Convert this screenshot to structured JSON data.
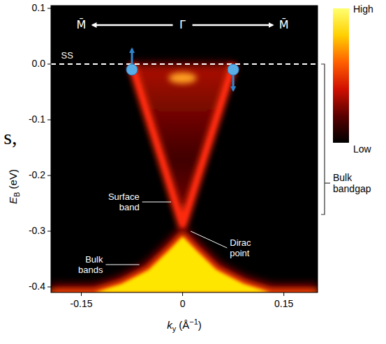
{
  "chart_data": {
    "type": "arpes",
    "x_label": [
      {
        "text": "k",
        "style": "italic"
      },
      {
        "text": "y",
        "style": "sub"
      },
      {
        "text": " (Å"
      },
      {
        "text": "−1",
        "style": "sup"
      },
      {
        "text": ")"
      }
    ],
    "y_label": [
      {
        "text": "E",
        "style": "italic"
      },
      {
        "text": "B",
        "style": "sub"
      },
      {
        "text": " (eV)"
      }
    ],
    "xlim": [
      -0.195,
      0.2
    ],
    "xticks": [
      -0.15,
      0,
      0.15
    ],
    "ylim": [
      -0.41,
      0.105
    ],
    "yticks": [
      0.1,
      {
        "value": 0,
        "label": "0.0"
      },
      -0.1,
      -0.2,
      -0.3,
      -0.4
    ],
    "series": [
      {
        "type": "line",
        "color": "#ff2a10",
        "x": [
          -0.075,
          -0.05,
          -0.025,
          0,
          0.025,
          0.05,
          0.075
        ],
        "values": [
          0,
          -0.097,
          -0.193,
          -0.29,
          -0.193,
          -0.097,
          0
        ]
      },
      {
        "type": "area",
        "color": "#ffe600",
        "x": [
          -0.195,
          -0.13,
          -0.09,
          -0.05,
          -0.02,
          0,
          0.02,
          0.05,
          0.09,
          0.13,
          0.2
        ],
        "values": [
          -0.41,
          -0.41,
          -0.395,
          -0.37,
          -0.335,
          -0.31,
          -0.335,
          -0.37,
          -0.395,
          -0.41,
          -0.41
        ]
      },
      {
        "type": "scatter",
        "color": "#ffa020",
        "x": [
          0
        ],
        "values": [
          -0.025
        ]
      }
    ],
    "fermi_level": {
      "energy": 0,
      "line_style": "dashed"
    },
    "spins": [
      {
        "k": -0.075,
        "energy": -0.01,
        "direction": "up"
      },
      {
        "k": 0.075,
        "energy": -0.01,
        "direction": "down"
      }
    ],
    "high_symmetry": {
      "energy": 0.07,
      "points": [
        {
          "label": "M̄",
          "k": -0.15
        },
        {
          "label": "Γ̄",
          "k": 0
        },
        {
          "label": "M̄",
          "k": 0.15
        }
      ]
    },
    "annotations": [
      {
        "text": "SS",
        "k": -0.18,
        "energy": 0.015
      },
      {
        "text": "Surface band",
        "k": -0.064,
        "energy": -0.2475,
        "pointer_k": -0.017,
        "pointer_energy": -0.2475
      },
      {
        "text": "Dirac point",
        "k": 0.07,
        "energy": -0.33,
        "pointer_k": 0.012,
        "pointer_energy": -0.3
      },
      {
        "text": "Bulk bands",
        "k": -0.118,
        "energy": -0.36,
        "pointer_k": -0.064,
        "pointer_energy": -0.36
      }
    ],
    "bulk_bandgap": {
      "label": "Bulk bandgap",
      "top": 0,
      "bottom": -0.27
    },
    "fragment": {
      "text": "s,",
      "k": -0.265,
      "energy": -0.135
    },
    "colorbar": {
      "colors": [
        "#000000",
        "#5a0000",
        "#d01000",
        "#ff6000",
        "#ffd000",
        "#ffff70"
      ],
      "low_label": "Low",
      "high_label": "High"
    }
  }
}
